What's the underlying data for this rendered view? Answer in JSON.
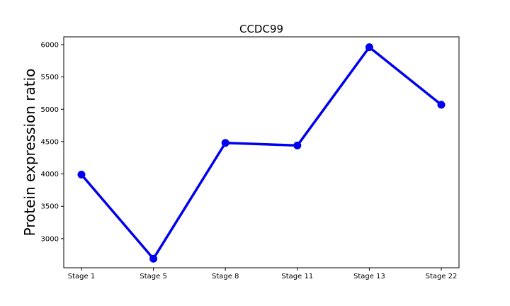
{
  "chart_data": {
    "type": "line",
    "title": "CCDC99",
    "xlabel": "",
    "ylabel": "Protein expression ratio",
    "categories": [
      "Stage 1",
      "Stage 5",
      "Stage 8",
      "Stage 11",
      "Stage 13",
      "Stage 22"
    ],
    "series": [
      {
        "values": [
          3990,
          2690,
          4480,
          4440,
          5960,
          5070
        ],
        "color": "#0000ee"
      }
    ],
    "ylim": [
      2550,
      6120
    ],
    "yticks": [
      3000,
      3500,
      4000,
      4500,
      5000,
      5500,
      6000
    ],
    "grid": false
  }
}
